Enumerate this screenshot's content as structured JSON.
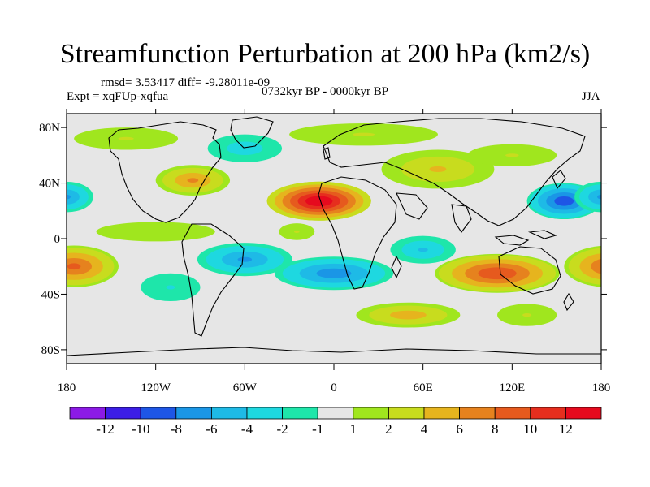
{
  "header": {
    "title": "Streamfunction Perturbation at 200 hPa (km2/s)",
    "rmsd_line": "rmsd= 3.53417 diff= -9.28011e-09",
    "experiment": "Expt = xqFUp-xqfua",
    "period": "0732kyr BP - 0000kyr BP",
    "season": "JJA"
  },
  "chart_data": {
    "type": "heatmap",
    "title": "Streamfunction Perturbation at 200 hPa (km2/s)",
    "subtitle": "0732kyr BP - 0000kyr BP",
    "x_range": [
      -180,
      180
    ],
    "y_range": [
      -90,
      90
    ],
    "x_ticks": [
      {
        "value": -180,
        "label": "180"
      },
      {
        "value": -120,
        "label": "120W"
      },
      {
        "value": -60,
        "label": "60W"
      },
      {
        "value": 0,
        "label": "0"
      },
      {
        "value": 60,
        "label": "60E"
      },
      {
        "value": 120,
        "label": "120E"
      },
      {
        "value": 180,
        "label": "180"
      }
    ],
    "y_ticks": [
      {
        "value": 80,
        "label": "80N"
      },
      {
        "value": 40,
        "label": "40N"
      },
      {
        "value": 0,
        "label": "0"
      },
      {
        "value": -40,
        "label": "40S"
      },
      {
        "value": -80,
        "label": "80S"
      }
    ],
    "colorbar": {
      "labels": [
        "-12",
        "-10",
        "-8",
        "-6",
        "-4",
        "-2",
        "-1",
        "1",
        "2",
        "4",
        "6",
        "8",
        "10",
        "12"
      ],
      "colors": [
        "#8c1ae6",
        "#3c1ee6",
        "#1e56e6",
        "#1a96e6",
        "#1ebae6",
        "#1ed8e0",
        "#1ee6aa",
        "#e6e6e6",
        "#a0e61e",
        "#c8dc1e",
        "#e6b41e",
        "#e6821e",
        "#e65a1e",
        "#e62e1e",
        "#e60a1e"
      ]
    },
    "features": [
      {
        "lon": -10,
        "lat": 27,
        "value": 13.5,
        "rx": 35,
        "ry": 14
      },
      {
        "lon": 155,
        "lat": 27,
        "value": -9,
        "rx": 25,
        "ry": 13
      },
      {
        "lon": -180,
        "lat": 30,
        "value": -6,
        "rx": 18,
        "ry": 11
      },
      {
        "lon": 110,
        "lat": -25,
        "value": 9.5,
        "rx": 42,
        "ry": 14
      },
      {
        "lon": -175,
        "lat": -20,
        "value": 8,
        "rx": 30,
        "ry": 15
      },
      {
        "lon": -60,
        "lat": -15,
        "value": -6,
        "rx": 32,
        "ry": 12
      },
      {
        "lon": 0,
        "lat": -25,
        "value": -7,
        "rx": 40,
        "ry": 12
      },
      {
        "lon": 60,
        "lat": -8,
        "value": -4,
        "rx": 22,
        "ry": 10
      },
      {
        "lon": -95,
        "lat": 42,
        "value": 6,
        "rx": 25,
        "ry": 11
      },
      {
        "lon": 70,
        "lat": 50,
        "value": 4,
        "rx": 38,
        "ry": 14
      },
      {
        "lon": 50,
        "lat": -55,
        "value": 5,
        "rx": 35,
        "ry": 9
      },
      {
        "lon": 20,
        "lat": 75,
        "value": 2,
        "rx": 50,
        "ry": 8
      },
      {
        "lon": -140,
        "lat": 72,
        "value": 2,
        "rx": 35,
        "ry": 8
      },
      {
        "lon": -60,
        "lat": 65,
        "value": -3,
        "rx": 25,
        "ry": 10
      },
      {
        "lon": -25,
        "lat": 5,
        "value": 2,
        "rx": 12,
        "ry": 6
      },
      {
        "lon": 120,
        "lat": 60,
        "value": 2,
        "rx": 30,
        "ry": 8
      },
      {
        "lon": 130,
        "lat": -55,
        "value": 2,
        "rx": 20,
        "ry": 8
      },
      {
        "lon": -110,
        "lat": -35,
        "value": -2,
        "rx": 20,
        "ry": 10
      },
      {
        "lon": -120,
        "lat": 5,
        "value": 1.5,
        "rx": 40,
        "ry": 7
      }
    ]
  }
}
